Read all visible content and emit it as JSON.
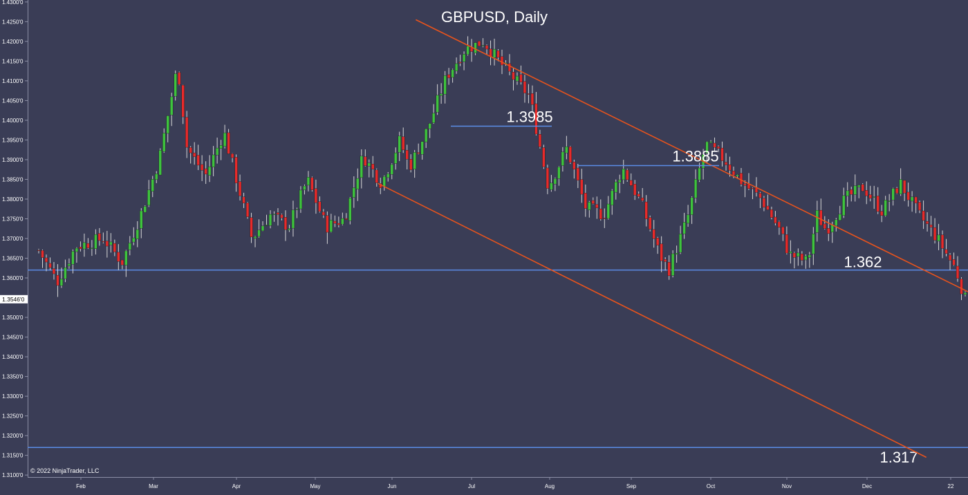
{
  "chart_data": {
    "type": "candlestick",
    "title": "GBPUSD, Daily",
    "copyright": "© 2022 NinjaTrader, LLC",
    "current_price_label": "1.3546'0",
    "current_price": 1.3546,
    "ylim": [
      1.3095,
      1.4305
    ],
    "y_ticks": [
      {
        "value": 1.43,
        "label": "1.4300'0"
      },
      {
        "value": 1.425,
        "label": "1.4250'0"
      },
      {
        "value": 1.42,
        "label": "1.4200'0"
      },
      {
        "value": 1.415,
        "label": "1.4150'0"
      },
      {
        "value": 1.41,
        "label": "1.4100'0"
      },
      {
        "value": 1.405,
        "label": "1.4050'0"
      },
      {
        "value": 1.4,
        "label": "1.4000'0"
      },
      {
        "value": 1.395,
        "label": "1.3950'0"
      },
      {
        "value": 1.39,
        "label": "1.3900'0"
      },
      {
        "value": 1.385,
        "label": "1.3850'0"
      },
      {
        "value": 1.38,
        "label": "1.3800'0"
      },
      {
        "value": 1.375,
        "label": "1.3750'0"
      },
      {
        "value": 1.37,
        "label": "1.3700'0"
      },
      {
        "value": 1.365,
        "label": "1.3650'0"
      },
      {
        "value": 1.36,
        "label": "1.3600'0"
      },
      {
        "value": 1.35,
        "label": "1.3500'0"
      },
      {
        "value": 1.345,
        "label": "1.3450'0"
      },
      {
        "value": 1.34,
        "label": "1.3400'0"
      },
      {
        "value": 1.335,
        "label": "1.3350'0"
      },
      {
        "value": 1.33,
        "label": "1.3300'0"
      },
      {
        "value": 1.325,
        "label": "1.3250'0"
      },
      {
        "value": 1.32,
        "label": "1.3200'0"
      },
      {
        "value": 1.315,
        "label": "1.3150'0"
      },
      {
        "value": 1.31,
        "label": "1.3100'0"
      }
    ],
    "x_labels": [
      "Feb",
      "Mar",
      "Apr",
      "May",
      "Jun",
      "Jul",
      "Aug",
      "Sep",
      "Oct",
      "Nov",
      "Dec",
      "22"
    ],
    "horizontal_levels": [
      {
        "value": 1.362,
        "label": "1.362"
      },
      {
        "value": 1.317,
        "label": "1.317"
      }
    ],
    "resistance_segments": [
      {
        "value": 1.3985,
        "label": "1.3985"
      },
      {
        "value": 1.3885,
        "label": "1.3885"
      }
    ],
    "channel": {
      "upper": {
        "from": {
          "bar": 0.407,
          "value": 1.4255
        },
        "to": {
          "bar": 1.0,
          "value": 1.3565
        }
      },
      "lower": {
        "from": {
          "bar": 0.366,
          "value": 1.384
        },
        "to": {
          "bar": 0.958,
          "value": 1.3145
        }
      }
    },
    "anchors": [
      {
        "bar": 0.0,
        "price": 1.367
      },
      {
        "bar": 0.02,
        "price": 1.359
      },
      {
        "bar": 0.04,
        "price": 1.368
      },
      {
        "bar": 0.07,
        "price": 1.37
      },
      {
        "bar": 0.09,
        "price": 1.364
      },
      {
        "bar": 0.11,
        "price": 1.376
      },
      {
        "bar": 0.13,
        "price": 1.39
      },
      {
        "bar": 0.15,
        "price": 1.414
      },
      {
        "bar": 0.16,
        "price": 1.393
      },
      {
        "bar": 0.18,
        "price": 1.386
      },
      {
        "bar": 0.2,
        "price": 1.397
      },
      {
        "bar": 0.23,
        "price": 1.37
      },
      {
        "bar": 0.25,
        "price": 1.376
      },
      {
        "bar": 0.27,
        "price": 1.373
      },
      {
        "bar": 0.29,
        "price": 1.385
      },
      {
        "bar": 0.31,
        "price": 1.373
      },
      {
        "bar": 0.33,
        "price": 1.375
      },
      {
        "bar": 0.35,
        "price": 1.391
      },
      {
        "bar": 0.37,
        "price": 1.384
      },
      {
        "bar": 0.39,
        "price": 1.395
      },
      {
        "bar": 0.4,
        "price": 1.388
      },
      {
        "bar": 0.42,
        "price": 1.398
      },
      {
        "bar": 0.44,
        "price": 1.411
      },
      {
        "bar": 0.46,
        "price": 1.418
      },
      {
        "bar": 0.48,
        "price": 1.42
      },
      {
        "bar": 0.5,
        "price": 1.414
      },
      {
        "bar": 0.53,
        "price": 1.406
      },
      {
        "bar": 0.55,
        "price": 1.383
      },
      {
        "bar": 0.57,
        "price": 1.393
      },
      {
        "bar": 0.59,
        "price": 1.378
      },
      {
        "bar": 0.61,
        "price": 1.376
      },
      {
        "bar": 0.63,
        "price": 1.388
      },
      {
        "bar": 0.65,
        "price": 1.379
      },
      {
        "bar": 0.67,
        "price": 1.366
      },
      {
        "bar": 0.68,
        "price": 1.362
      },
      {
        "bar": 0.7,
        "price": 1.375
      },
      {
        "bar": 0.72,
        "price": 1.394
      },
      {
        "bar": 0.74,
        "price": 1.39
      },
      {
        "bar": 0.76,
        "price": 1.384
      },
      {
        "bar": 0.78,
        "price": 1.38
      },
      {
        "bar": 0.8,
        "price": 1.372
      },
      {
        "bar": 0.81,
        "price": 1.366
      },
      {
        "bar": 0.83,
        "price": 1.364
      },
      {
        "bar": 0.84,
        "price": 1.376
      },
      {
        "bar": 0.85,
        "price": 1.372
      },
      {
        "bar": 0.87,
        "price": 1.38
      },
      {
        "bar": 0.89,
        "price": 1.383
      },
      {
        "bar": 0.91,
        "price": 1.377
      },
      {
        "bar": 0.93,
        "price": 1.384
      },
      {
        "bar": 0.95,
        "price": 1.376
      },
      {
        "bar": 0.97,
        "price": 1.37
      },
      {
        "bar": 0.99,
        "price": 1.362
      },
      {
        "bar": 1.0,
        "price": 1.3546
      }
    ]
  }
}
